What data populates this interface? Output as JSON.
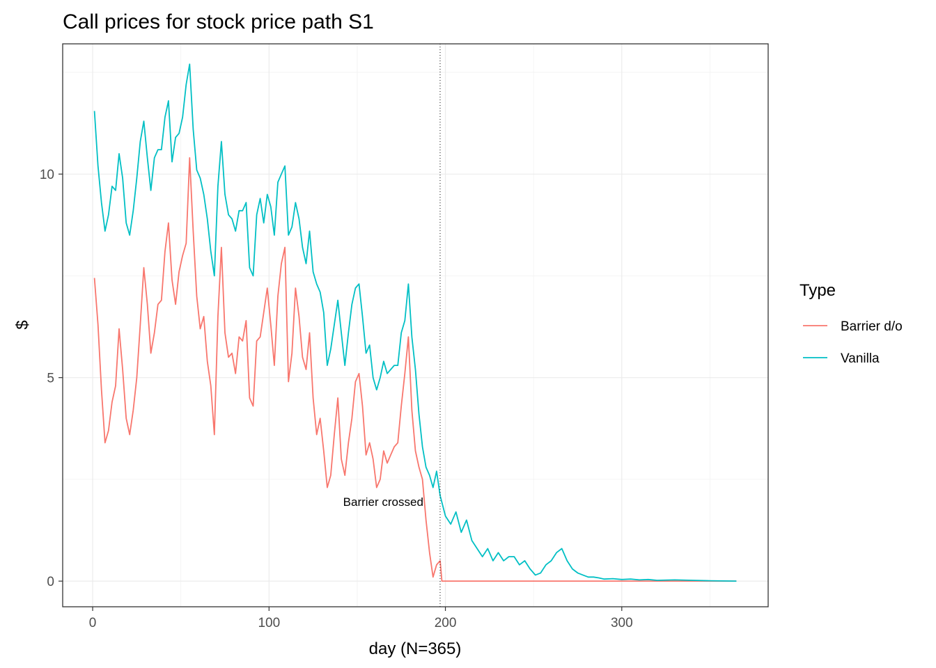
{
  "chart_data": {
    "type": "line",
    "title": "Call prices for stock price path S1",
    "xlabel": "day (N=365)",
    "ylabel": "$",
    "xlim": [
      -17,
      383
    ],
    "ylim": [
      -0.63,
      13.2
    ],
    "xticks": [
      0,
      100,
      200,
      300
    ],
    "yticks": [
      0,
      5,
      10
    ],
    "grid": true,
    "legend": {
      "title": "Type",
      "placement": "right"
    },
    "colors": {
      "Barrier d/o": "#F8766D",
      "Vanilla": "#00BFC4"
    },
    "barrier_day": 197,
    "annotation": {
      "text": "Barrier crossed",
      "x": 142,
      "y": 1.95
    },
    "series": [
      {
        "name": "Barrier d/o",
        "x": [
          1,
          3,
          5,
          7,
          9,
          11,
          13,
          15,
          17,
          19,
          21,
          23,
          25,
          27,
          29,
          31,
          33,
          35,
          37,
          39,
          41,
          43,
          45,
          47,
          49,
          51,
          53,
          55,
          57,
          59,
          61,
          63,
          65,
          67,
          69,
          71,
          73,
          75,
          77,
          79,
          81,
          83,
          85,
          87,
          89,
          91,
          93,
          95,
          97,
          99,
          101,
          103,
          105,
          107,
          109,
          111,
          113,
          115,
          117,
          119,
          121,
          123,
          125,
          127,
          129,
          131,
          133,
          135,
          137,
          139,
          141,
          143,
          145,
          147,
          149,
          151,
          153,
          155,
          157,
          159,
          161,
          163,
          165,
          167,
          169,
          171,
          173,
          175,
          177,
          179,
          181,
          183,
          185,
          187,
          189,
          191,
          193,
          195,
          197,
          198,
          220,
          250,
          280,
          310,
          340,
          365
        ],
        "values": [
          7.45,
          6.3,
          4.7,
          3.4,
          3.7,
          4.4,
          4.8,
          6.2,
          5.2,
          4.0,
          3.6,
          4.2,
          5.0,
          6.3,
          7.7,
          6.8,
          5.6,
          6.1,
          6.8,
          6.9,
          8.1,
          8.8,
          7.4,
          6.8,
          7.6,
          8.0,
          8.3,
          10.4,
          8.6,
          7.0,
          6.2,
          6.5,
          5.4,
          4.8,
          3.6,
          6.5,
          8.2,
          6.1,
          5.5,
          5.6,
          5.1,
          6.0,
          5.9,
          6.4,
          4.5,
          4.3,
          5.9,
          6.0,
          6.6,
          7.2,
          6.3,
          5.3,
          7.0,
          7.8,
          8.2,
          4.9,
          5.6,
          7.2,
          6.5,
          5.5,
          5.2,
          6.1,
          4.5,
          3.6,
          4.0,
          3.2,
          2.3,
          2.6,
          3.6,
          4.5,
          3.0,
          2.6,
          3.4,
          4.0,
          4.9,
          5.1,
          4.3,
          3.1,
          3.4,
          3.0,
          2.3,
          2.5,
          3.2,
          2.9,
          3.1,
          3.3,
          3.4,
          4.3,
          5.1,
          6.0,
          4.2,
          3.2,
          2.8,
          2.5,
          1.5,
          0.7,
          0.1,
          0.4,
          0.5,
          0.0,
          0.0,
          0.0,
          0.0,
          0.0,
          0.0,
          0.0
        ]
      },
      {
        "name": "Vanilla",
        "x": [
          1,
          3,
          5,
          7,
          9,
          11,
          13,
          15,
          17,
          19,
          21,
          23,
          25,
          27,
          29,
          31,
          33,
          35,
          37,
          39,
          41,
          43,
          45,
          47,
          49,
          51,
          53,
          55,
          57,
          59,
          61,
          63,
          65,
          67,
          69,
          71,
          73,
          75,
          77,
          79,
          81,
          83,
          85,
          87,
          89,
          91,
          93,
          95,
          97,
          99,
          101,
          103,
          105,
          107,
          109,
          111,
          113,
          115,
          117,
          119,
          121,
          123,
          125,
          127,
          129,
          131,
          133,
          135,
          137,
          139,
          141,
          143,
          145,
          147,
          149,
          151,
          153,
          155,
          157,
          159,
          161,
          163,
          165,
          167,
          169,
          171,
          173,
          175,
          177,
          179,
          181,
          183,
          185,
          187,
          189,
          191,
          193,
          195,
          197,
          200,
          203,
          206,
          209,
          212,
          215,
          218,
          221,
          224,
          227,
          230,
          233,
          236,
          239,
          242,
          245,
          248,
          251,
          254,
          257,
          260,
          263,
          266,
          269,
          272,
          275,
          278,
          281,
          284,
          287,
          290,
          295,
          300,
          305,
          310,
          315,
          320,
          330,
          340,
          350,
          365
        ],
        "values": [
          11.55,
          10.2,
          9.3,
          8.6,
          9.0,
          9.7,
          9.6,
          10.5,
          9.9,
          8.8,
          8.5,
          9.1,
          9.9,
          10.8,
          11.3,
          10.4,
          9.6,
          10.4,
          10.6,
          10.6,
          11.4,
          11.8,
          10.3,
          10.9,
          11.0,
          11.4,
          12.2,
          12.7,
          11.1,
          10.1,
          9.9,
          9.5,
          8.9,
          8.1,
          7.5,
          9.7,
          10.8,
          9.5,
          9.0,
          8.9,
          8.6,
          9.1,
          9.1,
          9.3,
          7.7,
          7.5,
          9.0,
          9.4,
          8.8,
          9.5,
          9.2,
          8.5,
          9.8,
          10.0,
          10.2,
          8.5,
          8.7,
          9.3,
          8.9,
          8.2,
          7.8,
          8.6,
          7.6,
          7.3,
          7.1,
          6.6,
          5.3,
          5.7,
          6.3,
          6.9,
          6.1,
          5.3,
          6.1,
          6.8,
          7.2,
          7.3,
          6.5,
          5.6,
          5.8,
          5.0,
          4.7,
          5.0,
          5.4,
          5.1,
          5.2,
          5.3,
          5.3,
          6.1,
          6.4,
          7.3,
          6.0,
          5.2,
          4.1,
          3.3,
          2.8,
          2.6,
          2.3,
          2.7,
          2.1,
          1.6,
          1.4,
          1.7,
          1.2,
          1.5,
          1.0,
          0.8,
          0.6,
          0.8,
          0.5,
          0.7,
          0.5,
          0.6,
          0.6,
          0.4,
          0.5,
          0.3,
          0.15,
          0.2,
          0.4,
          0.5,
          0.7,
          0.8,
          0.5,
          0.3,
          0.2,
          0.15,
          0.1,
          0.1,
          0.08,
          0.05,
          0.06,
          0.04,
          0.05,
          0.03,
          0.04,
          0.02,
          0.03,
          0.02,
          0.01,
          0.0
        ]
      }
    ]
  }
}
